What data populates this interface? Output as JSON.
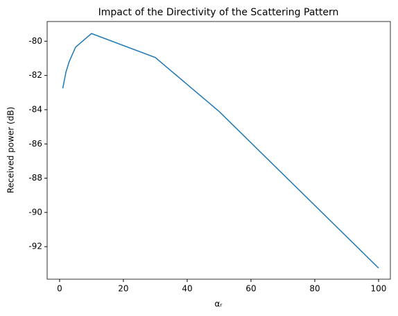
{
  "chart_data": {
    "type": "line",
    "title": "Impact of the Directivity of the Scattering Pattern",
    "xlabel": "αᵣ",
    "ylabel": "Received power (dB)",
    "series": [
      {
        "name": "received power",
        "color": "#1f77b4",
        "x": [
          1,
          2,
          3,
          5,
          10,
          30,
          50,
          100
        ],
        "values": [
          -82.75,
          -81.8,
          -81.2,
          -80.35,
          -79.55,
          -80.95,
          -84.1,
          -93.25
        ]
      }
    ],
    "xlim": [
      -3.9,
      103.7
    ],
    "xticks": [
      0,
      20,
      40,
      60,
      80,
      100
    ],
    "ylim": [
      -93.9,
      -78.85
    ],
    "yticks": [
      -92,
      -90,
      -88,
      -86,
      -84,
      -82,
      -80
    ]
  }
}
